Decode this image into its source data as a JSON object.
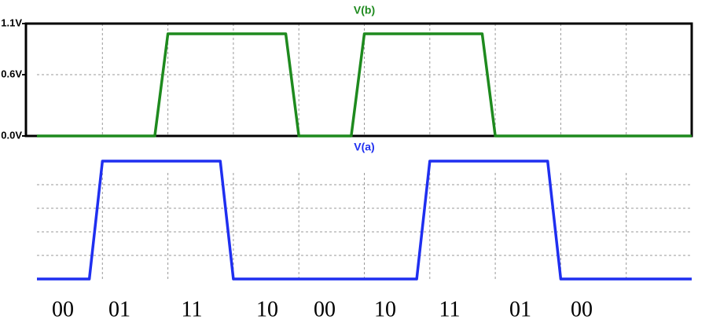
{
  "chart_data": [
    {
      "type": "line",
      "title": "V(b)",
      "xlim": [
        0,
        10
      ],
      "xgrid": [
        1,
        2,
        3,
        4,
        5,
        6,
        7,
        8,
        9
      ],
      "ylim": [
        0,
        1.1
      ],
      "yticks": [
        {
          "value": 0,
          "label": "0.0V"
        },
        {
          "value": 0.6,
          "label": "0.6V"
        },
        {
          "value": 1.1,
          "label": "1.1V"
        }
      ],
      "ygrid": [
        0.6
      ],
      "frame": true,
      "series": [
        {
          "name": "V(b)",
          "color": "#1e8a1e",
          "x": [
            0,
            1.8,
            2,
            3.8,
            4,
            4.8,
            5,
            6.8,
            7,
            10
          ],
          "values": [
            0,
            0,
            1,
            1,
            0,
            0,
            1,
            1,
            0,
            0
          ]
        }
      ]
    },
    {
      "type": "line",
      "title": "V(a)",
      "xlim": [
        0,
        10
      ],
      "xgrid": [
        1,
        2,
        3,
        4,
        5,
        6,
        7,
        8,
        9
      ],
      "ylim": [
        0,
        1
      ],
      "ygrid": [
        0.2,
        0.4,
        0.6,
        0.8
      ],
      "frame": false,
      "series": [
        {
          "name": "V(a)",
          "color": "#1f2ff0",
          "x": [
            0,
            0.8,
            1,
            2.8,
            3,
            5.8,
            6,
            7.8,
            8,
            10
          ],
          "values": [
            0,
            0,
            1,
            1,
            0,
            0,
            1,
            1,
            0,
            0
          ]
        }
      ]
    }
  ],
  "states": [
    "00",
    "01",
    "11",
    "10",
    "00",
    "10",
    "11",
    "01",
    "00"
  ]
}
